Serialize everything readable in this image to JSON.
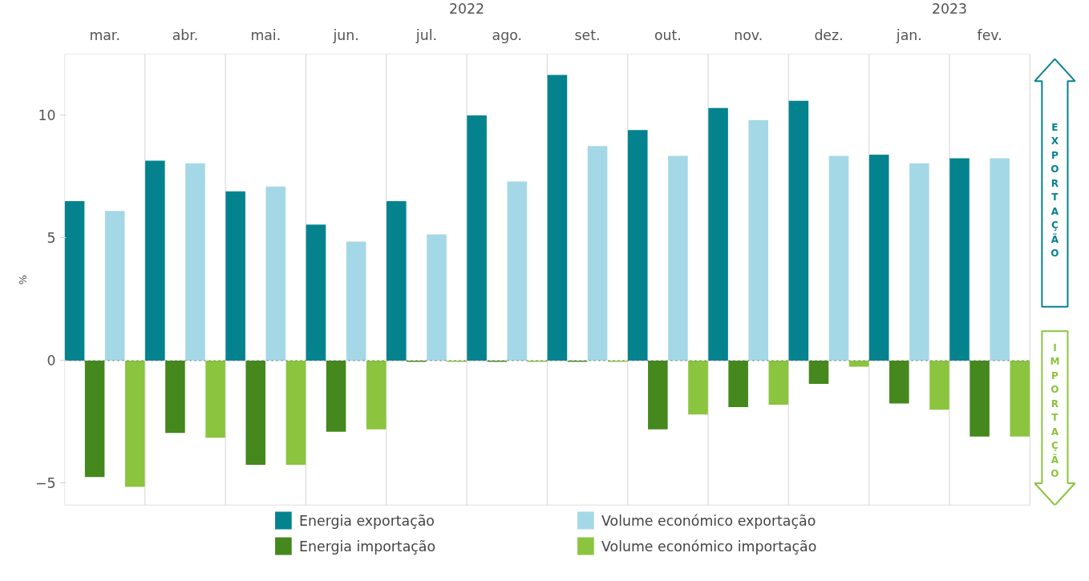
{
  "chart_data": {
    "type": "bar",
    "ylabel": "%",
    "categories": [
      "mar.",
      "abr.",
      "mai.",
      "jun.",
      "jul.",
      "ago.",
      "set.",
      "out.",
      "nov.",
      "dez.",
      "jan.",
      "fev."
    ],
    "series": [
      {
        "name": "Energia exportação",
        "color": "#04838f",
        "values": [
          6.5,
          8.15,
          6.9,
          5.55,
          6.5,
          10.0,
          11.65,
          9.4,
          10.3,
          10.6,
          8.4,
          8.25
        ]
      },
      {
        "name": "Energia importação",
        "color": "#45881d",
        "values": [
          -4.75,
          -2.95,
          -4.25,
          -2.9,
          -0.05,
          -0.05,
          -0.05,
          -2.8,
          -1.9,
          -0.95,
          -1.75,
          -3.1
        ]
      },
      {
        "name": "Volume económico exportação",
        "color": "#a5d8e6",
        "values": [
          6.1,
          8.05,
          7.1,
          4.85,
          5.15,
          7.3,
          8.75,
          8.35,
          9.8,
          8.35,
          8.05,
          8.25
        ]
      },
      {
        "name": "Volume económico importação",
        "color": "#8bc43f",
        "values": [
          -5.15,
          -3.15,
          -4.25,
          -2.8,
          -0.05,
          -0.05,
          -0.05,
          -2.2,
          -1.8,
          -0.25,
          -2.0,
          -3.1
        ]
      }
    ],
    "ylim": [
      -5.9,
      12.5
    ],
    "yticks": [
      -5,
      0,
      5,
      10
    ],
    "grid": false,
    "legend": "bottom",
    "ref_lines": [
      {
        "axis": "y",
        "value": 0,
        "color": "#666666",
        "line_style": "dotted"
      }
    ],
    "annotations": [
      "2022",
      "2023",
      "EXPORTAÇÃO",
      "IMPORTAÇÃO"
    ]
  }
}
